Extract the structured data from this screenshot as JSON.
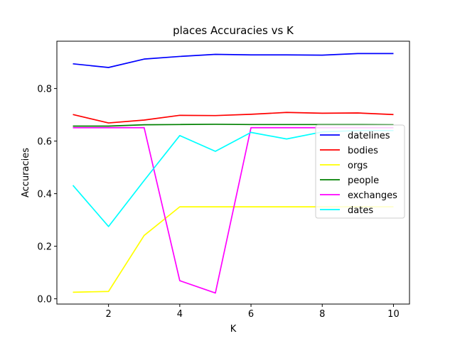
{
  "chart_data": {
    "type": "line",
    "title": "places Accuracies vs K",
    "xlabel": "K",
    "ylabel": "Accuracies",
    "xlim": [
      0.55,
      10.45
    ],
    "ylim": [
      -0.02,
      0.98
    ],
    "xticks": [
      2,
      4,
      6,
      8,
      10
    ],
    "yticks": [
      0.0,
      0.2,
      0.4,
      0.6,
      0.8
    ],
    "ytick_labels": [
      "0.0",
      "0.2",
      "0.4",
      "0.6",
      "0.8"
    ],
    "legend_position": "right",
    "x": [
      1,
      2,
      3,
      4,
      5,
      6,
      7,
      8,
      9,
      10
    ],
    "series": [
      {
        "name": "datelines",
        "color": "#0000ff",
        "values": [
          0.894,
          0.88,
          0.912,
          0.922,
          0.93,
          0.928,
          0.928,
          0.927,
          0.933,
          0.933
        ]
      },
      {
        "name": "bodies",
        "color": "#ff0000",
        "values": [
          0.701,
          0.669,
          0.68,
          0.698,
          0.697,
          0.702,
          0.709,
          0.706,
          0.707,
          0.701
        ]
      },
      {
        "name": "orgs",
        "color": "#ffff00",
        "values": [
          0.025,
          0.028,
          0.241,
          0.35,
          0.35,
          0.35,
          0.35,
          0.35,
          0.35,
          0.35
        ]
      },
      {
        "name": "people",
        "color": "#008000",
        "values": [
          0.657,
          0.657,
          0.662,
          0.663,
          0.664,
          0.663,
          0.663,
          0.663,
          0.663,
          0.662
        ]
      },
      {
        "name": "exchanges",
        "color": "#ff00ff",
        "values": [
          0.651,
          0.651,
          0.651,
          0.069,
          0.022,
          0.651,
          0.651,
          0.651,
          0.651,
          0.651
        ]
      },
      {
        "name": "dates",
        "color": "#00ffff",
        "values": [
          0.432,
          0.275,
          0.45,
          0.621,
          0.561,
          0.633,
          0.608,
          0.635,
          0.64,
          0.64
        ]
      }
    ]
  }
}
